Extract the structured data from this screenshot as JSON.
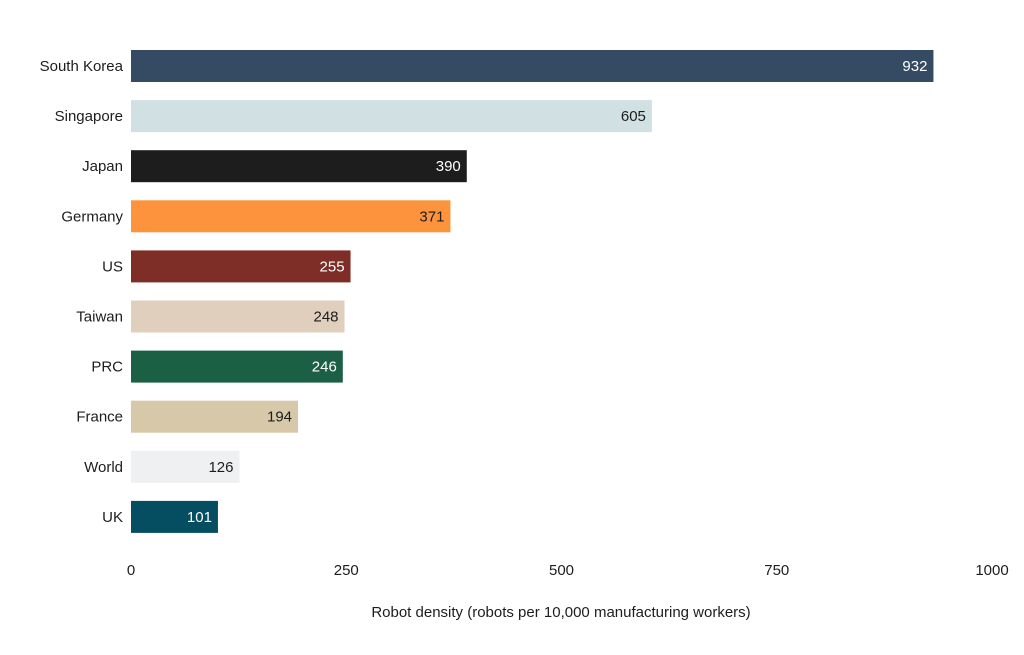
{
  "chart_data": {
    "type": "bar",
    "orientation": "horizontal",
    "title": "",
    "xlabel": "Robot density (robots per 10,000 manufacturing workers)",
    "ylabel": "",
    "xlim": [
      0,
      1000
    ],
    "xticks": [
      0,
      250,
      500,
      750,
      1000
    ],
    "xtick_labels": [
      "0",
      "250",
      "500",
      "750",
      "1000"
    ],
    "grid": false,
    "legend": "none",
    "categories": [
      "South Korea",
      "Singapore",
      "Japan",
      "Germany",
      "US",
      "Taiwan",
      "PRC",
      "France",
      "World",
      "UK"
    ],
    "values": [
      932,
      605,
      390,
      371,
      255,
      248,
      246,
      194,
      126,
      101
    ],
    "value_labels": [
      "932",
      "605",
      "390",
      "371",
      "255",
      "248",
      "246",
      "194",
      "126",
      "101"
    ],
    "colors": [
      "#354b63",
      "#d0e0e3",
      "#1d1d1d",
      "#fd933c",
      "#7e2e27",
      "#e0cfbd",
      "#1b6045",
      "#d6c8a8",
      "#eef0f2",
      "#054d61"
    ],
    "value_label_colors": [
      "#ffffff",
      "#1d1d1d",
      "#ffffff",
      "#1d1d1d",
      "#ffffff",
      "#1d1d1d",
      "#ffffff",
      "#1d1d1d",
      "#1d1d1d",
      "#ffffff"
    ]
  }
}
